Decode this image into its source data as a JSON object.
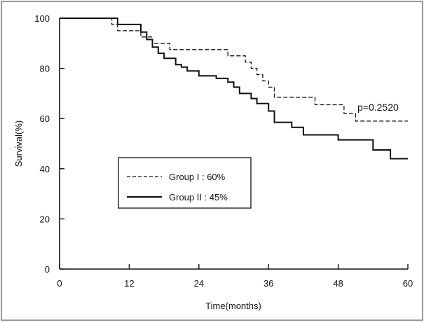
{
  "chart_data": {
    "type": "line",
    "step": true,
    "xlabel": "Time(months)",
    "ylabel": "Survival(%)",
    "xlim": [
      0,
      60
    ],
    "ylim": [
      0,
      100
    ],
    "xticks": [
      "0",
      "12",
      "24",
      "36",
      "48",
      "60"
    ],
    "yticks": [
      "0",
      "20",
      "40",
      "60",
      "80",
      "100"
    ],
    "grid": false,
    "legend_position": "center-left",
    "annotation": "p=0.2520",
    "series": [
      {
        "name": "Group I : 60%",
        "style": "dashed",
        "color": "#111111",
        "points": [
          [
            0,
            100
          ],
          [
            9,
            100
          ],
          [
            9,
            97.5
          ],
          [
            10,
            97.5
          ],
          [
            10,
            95
          ],
          [
            14,
            95
          ],
          [
            14,
            92.5
          ],
          [
            16,
            92.5
          ],
          [
            16,
            90
          ],
          [
            19,
            90
          ],
          [
            19,
            87.5
          ],
          [
            29,
            87.5
          ],
          [
            29,
            85
          ],
          [
            32,
            85
          ],
          [
            32,
            82.5
          ],
          [
            33,
            82.5
          ],
          [
            33,
            80
          ],
          [
            34,
            80
          ],
          [
            34,
            77.5
          ],
          [
            35,
            77.5
          ],
          [
            35,
            75
          ],
          [
            36,
            75
          ],
          [
            36,
            72.5
          ],
          [
            37,
            72.5
          ],
          [
            37,
            68.5
          ],
          [
            44,
            68.5
          ],
          [
            44,
            65.5
          ],
          [
            49,
            65.5
          ],
          [
            49,
            62
          ],
          [
            51,
            62
          ],
          [
            51,
            59
          ],
          [
            60,
            59
          ]
        ]
      },
      {
        "name": "Group II : 45%",
        "style": "solid",
        "color": "#111111",
        "points": [
          [
            0,
            100
          ],
          [
            10,
            100
          ],
          [
            10,
            97.5
          ],
          [
            14,
            97.5
          ],
          [
            14,
            94.5
          ],
          [
            15,
            94.5
          ],
          [
            15,
            91.5
          ],
          [
            16,
            91.5
          ],
          [
            16,
            88.5
          ],
          [
            17,
            88.5
          ],
          [
            17,
            86
          ],
          [
            18,
            86
          ],
          [
            18,
            84
          ],
          [
            20,
            84
          ],
          [
            20,
            81.5
          ],
          [
            21,
            81.5
          ],
          [
            21,
            80.5
          ],
          [
            22,
            80.5
          ],
          [
            22,
            79
          ],
          [
            24,
            79
          ],
          [
            24,
            77
          ],
          [
            27,
            77
          ],
          [
            27,
            76
          ],
          [
            29,
            76
          ],
          [
            29,
            74.5
          ],
          [
            30,
            74.5
          ],
          [
            30,
            72.5
          ],
          [
            31,
            72.5
          ],
          [
            31,
            70
          ],
          [
            33,
            70
          ],
          [
            33,
            68
          ],
          [
            34,
            68
          ],
          [
            34,
            66
          ],
          [
            36,
            66
          ],
          [
            36,
            63
          ],
          [
            37,
            63
          ],
          [
            37,
            58.5
          ],
          [
            40,
            58.5
          ],
          [
            40,
            56.5
          ],
          [
            42,
            56.5
          ],
          [
            42,
            53.5
          ],
          [
            48,
            53.5
          ],
          [
            48,
            51.5
          ],
          [
            54,
            51.5
          ],
          [
            54,
            47.5
          ],
          [
            57,
            47.5
          ],
          [
            57,
            44
          ],
          [
            60,
            44
          ]
        ]
      }
    ]
  }
}
